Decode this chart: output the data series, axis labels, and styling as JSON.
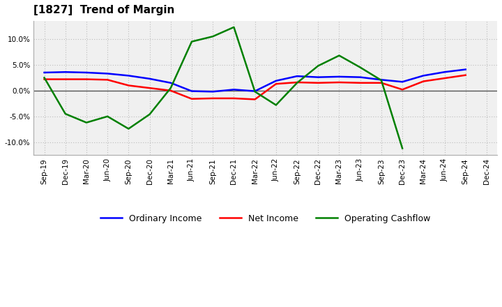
{
  "title": "[1827]  Trend of Margin",
  "labels": [
    "Sep-19",
    "Dec-19",
    "Mar-20",
    "Jun-20",
    "Sep-20",
    "Dec-20",
    "Mar-21",
    "Jun-21",
    "Sep-21",
    "Dec-21",
    "Mar-22",
    "Jun-22",
    "Sep-22",
    "Dec-22",
    "Mar-23",
    "Jun-23",
    "Sep-23",
    "Dec-23",
    "Mar-24",
    "Jun-24",
    "Sep-24",
    "Dec-24"
  ],
  "ordinary_income": [
    3.5,
    3.6,
    3.5,
    3.3,
    2.9,
    2.3,
    1.5,
    -0.1,
    -0.2,
    0.2,
    -0.1,
    1.9,
    2.8,
    2.6,
    2.7,
    2.6,
    2.1,
    1.7,
    2.9,
    3.6,
    4.1,
    null
  ],
  "net_income": [
    2.2,
    2.2,
    2.2,
    2.1,
    1.0,
    0.5,
    0.0,
    -1.6,
    -1.5,
    -1.5,
    -1.7,
    1.3,
    1.6,
    1.5,
    1.6,
    1.5,
    1.5,
    0.2,
    1.8,
    2.4,
    3.0,
    null
  ],
  "operating_cashflow": [
    2.5,
    -4.5,
    -6.2,
    -5.0,
    -7.4,
    -4.6,
    0.5,
    9.5,
    10.5,
    12.3,
    -0.2,
    -2.8,
    1.5,
    4.8,
    6.8,
    4.5,
    2.0,
    -11.2,
    null,
    null,
    null,
    null
  ],
  "colors": {
    "ordinary_income": "#0000ff",
    "net_income": "#ff0000",
    "operating_cashflow": "#008000"
  },
  "ylim": [
    -12.5,
    13.5
  ],
  "yticks": [
    -10.0,
    -5.0,
    0.0,
    5.0,
    10.0
  ],
  "background_color": "#ffffff",
  "plot_bg_color": "#f0f0f0",
  "grid_color": "#bbbbbb",
  "line_width": 1.8
}
